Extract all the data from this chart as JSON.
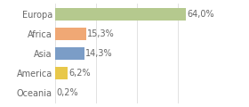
{
  "categories": [
    "Oceania",
    "America",
    "Asia",
    "Africa",
    "Europa"
  ],
  "values": [
    0.2,
    6.2,
    14.3,
    15.3,
    64.0
  ],
  "bar_colors": [
    "#e8c84a",
    "#e8c84a",
    "#7b9dc7",
    "#f0a875",
    "#b5c98e"
  ],
  "labels": [
    "0,2%",
    "6,2%",
    "14,3%",
    "15,3%",
    "64,0%"
  ],
  "background_color": "#ffffff",
  "bar_height": 0.65,
  "xlim": [
    0,
    80
  ],
  "label_fontsize": 7,
  "tick_fontsize": 7,
  "grid_lines": [
    20,
    40,
    60,
    80
  ],
  "grid_color": "#dddddd",
  "text_color": "#666666",
  "figsize": [
    2.8,
    1.2
  ],
  "dpi": 100
}
